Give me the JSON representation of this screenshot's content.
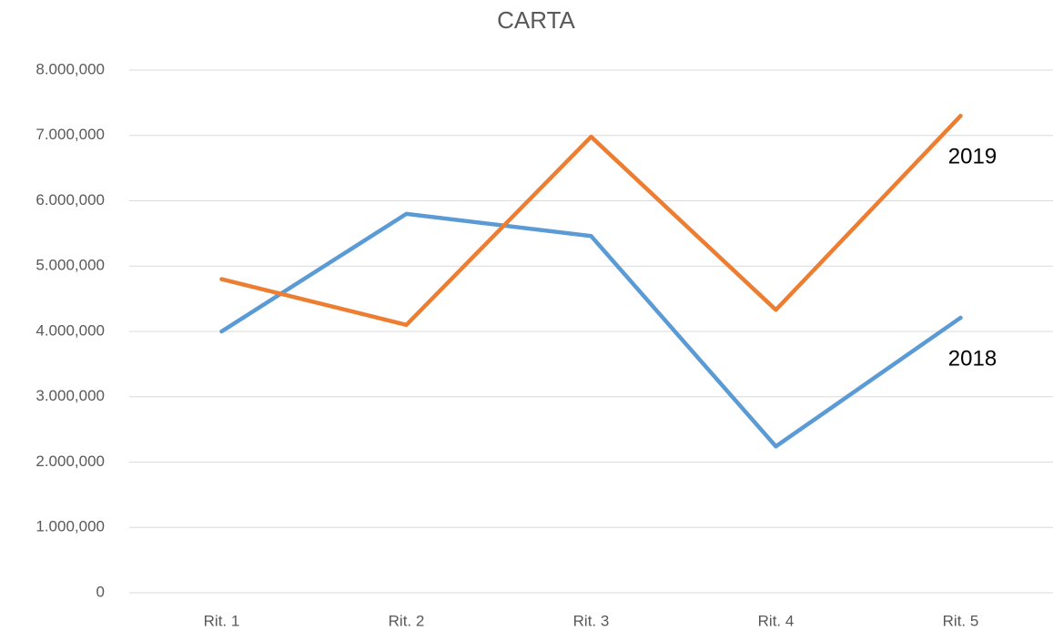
{
  "chart_data": {
    "type": "line",
    "title": "CARTA",
    "categories": [
      "Rit. 1",
      "Rit. 2",
      "Rit. 3",
      "Rit. 4",
      "Rit. 5"
    ],
    "series": [
      {
        "name": "2018",
        "color": "#5b9bd5",
        "values": [
          4000000,
          5800000,
          5460000,
          2240000,
          4210000
        ]
      },
      {
        "name": "2019",
        "color": "#ed7d31",
        "values": [
          4800000,
          4100000,
          6980000,
          4330000,
          7300000
        ]
      }
    ],
    "ylim": [
      0,
      8000000
    ],
    "yticks": [
      0,
      {
        "value": 1000000,
        "label": "1.000,000"
      },
      {
        "value": 2000000,
        "label": "2.000,000"
      },
      {
        "value": 3000000,
        "label": "3.000,000"
      },
      {
        "value": 4000000,
        "label": "4.000,000"
      },
      {
        "value": 5000000,
        "label": "5.000,000"
      },
      {
        "value": 6000000,
        "label": "6.000,000"
      },
      {
        "value": 7000000,
        "label": "7.000,000"
      },
      {
        "value": 8000000,
        "label": "8.000,000"
      }
    ],
    "grid": true
  }
}
